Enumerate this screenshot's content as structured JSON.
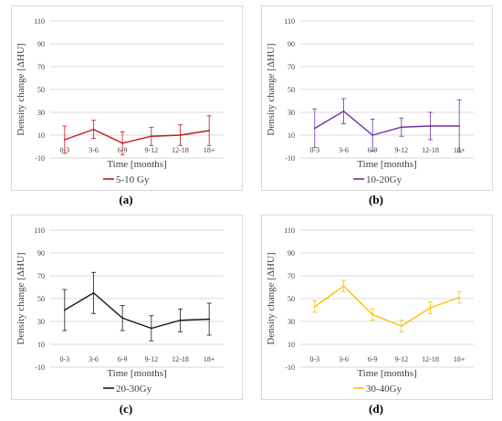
{
  "chart_data": [
    {
      "type": "line",
      "panel": "(a)",
      "categories": [
        "0-3",
        "3-6",
        "6-9",
        "9-12",
        "12-18",
        "18+"
      ],
      "series": [
        {
          "name": "5-10 Gy",
          "values": [
            6,
            15,
            3,
            9,
            10,
            14
          ],
          "error": [
            12,
            8,
            10,
            8,
            9,
            13
          ]
        }
      ],
      "color": "#c0191e",
      "xlabel": "Time [months]",
      "ylabel": "Density change [ΔHU]",
      "ylim": [
        -10,
        110
      ],
      "yticks": [
        -10,
        10,
        30,
        50,
        70,
        90,
        110
      ],
      "grid": true,
      "legend": "bottom"
    },
    {
      "type": "line",
      "panel": "(b)",
      "categories": [
        "0-3",
        "3-6",
        "6-9",
        "9-12",
        "12-18",
        "18+"
      ],
      "series": [
        {
          "name": "10-20Gy",
          "values": [
            16,
            31,
            10,
            17,
            18,
            18
          ],
          "error": [
            17,
            11,
            14,
            8,
            12,
            23
          ]
        }
      ],
      "color": "#7030a0",
      "xlabel": "Time [months]",
      "ylabel": "Density change [ΔHU]",
      "ylim": [
        -10,
        110
      ],
      "yticks": [
        -10,
        10,
        30,
        50,
        70,
        90,
        110
      ],
      "grid": true,
      "legend": "bottom"
    },
    {
      "type": "line",
      "panel": "(c)",
      "categories": [
        "0-3",
        "3-6",
        "6-9",
        "9-12",
        "12-18",
        "18+"
      ],
      "series": [
        {
          "name": "20-30Gy",
          "values": [
            40,
            55,
            33,
            24,
            31,
            32
          ],
          "error": [
            18,
            18,
            11,
            11,
            10,
            14
          ]
        }
      ],
      "color": "#1a1a1a",
      "xlabel": "Time [months]",
      "ylabel": "Density change [ΔHU]",
      "ylim": [
        -10,
        110
      ],
      "yticks": [
        -10,
        10,
        30,
        50,
        70,
        90,
        110
      ],
      "grid": true,
      "legend": "bottom"
    },
    {
      "type": "line",
      "panel": "(d)",
      "categories": [
        "0-3",
        "3-6",
        "6-9",
        "9-12",
        "12-18",
        "18+"
      ],
      "series": [
        {
          "name": "30-40Gy",
          "values": [
            43,
            61,
            36,
            26,
            42,
            51
          ],
          "error": [
            5,
            5,
            5,
            5,
            5,
            5
          ]
        }
      ],
      "color": "#ffc000",
      "xlabel": "Time [months]",
      "ylabel": "Density change [ΔHU]",
      "ylim": [
        -10,
        110
      ],
      "yticks": [
        -10,
        10,
        30,
        50,
        70,
        90,
        110
      ],
      "grid": true,
      "legend": "bottom"
    }
  ]
}
